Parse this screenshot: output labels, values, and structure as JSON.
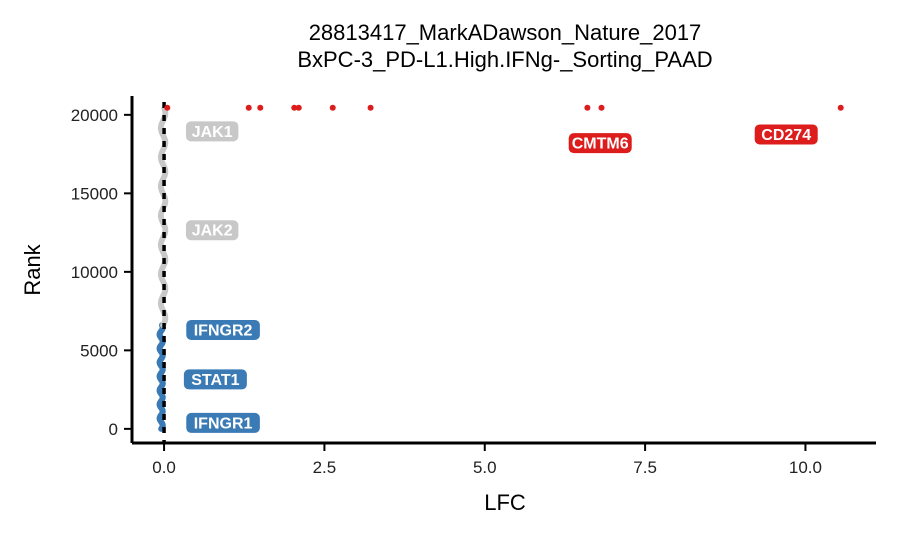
{
  "chart_data": {
    "type": "scatter",
    "title_line1": "28813417_MarkADawson_Nature_2017",
    "title_line2": "BxPC-3_PD-L1.High.IFNg-_Sorting_PAAD",
    "xlabel": "LFC",
    "ylabel": "Rank",
    "xlim": [
      -0.5,
      11.1
    ],
    "ylim": [
      -900,
      21200
    ],
    "x_ticks": [
      0.0,
      2.5,
      5.0,
      7.5,
      10.0
    ],
    "x_tick_labels": [
      "0.0",
      "2.5",
      "5.0",
      "7.5",
      "10.0"
    ],
    "y_ticks": [
      0,
      5000,
      10000,
      15000,
      20000
    ],
    "y_tick_labels": [
      "0",
      "5000",
      "10000",
      "15000",
      "20000"
    ],
    "grid": false,
    "reference_line_x": 0,
    "colors": {
      "negative": "#3a7ab5",
      "neutral": "#c8c8c8",
      "positive": "#dd1c1c",
      "reference_line": "#000000",
      "axis": "#000000"
    },
    "bulk_series": [
      {
        "group": "negative",
        "rank_range": [
          0,
          6600
        ],
        "lfc_range": [
          -0.07,
          -0.02
        ]
      },
      {
        "group": "neutral",
        "rank_range": [
          6600,
          20400
        ],
        "lfc_range": [
          -0.05,
          0.02
        ]
      }
    ],
    "points": [
      {
        "x": 0.05,
        "y": 20450,
        "group": "positive"
      },
      {
        "x": 1.32,
        "y": 20450,
        "group": "positive"
      },
      {
        "x": 1.5,
        "y": 20450,
        "group": "positive"
      },
      {
        "x": 2.03,
        "y": 20450,
        "group": "positive"
      },
      {
        "x": 2.1,
        "y": 20450,
        "group": "positive"
      },
      {
        "x": 2.63,
        "y": 20450,
        "group": "positive"
      },
      {
        "x": 3.22,
        "y": 20450,
        "group": "positive"
      },
      {
        "x": 6.6,
        "y": 20450,
        "group": "positive"
      },
      {
        "x": 6.82,
        "y": 20450,
        "group": "positive"
      },
      {
        "x": 10.55,
        "y": 20450,
        "group": "positive"
      }
    ],
    "gene_labels": [
      {
        "text": "JAK1",
        "x": 0.75,
        "y": 18950,
        "group": "neutral"
      },
      {
        "text": "JAK2",
        "x": 0.75,
        "y": 12650,
        "group": "neutral"
      },
      {
        "text": "IFNGR2",
        "x": 0.92,
        "y": 6300,
        "group": "negative"
      },
      {
        "text": "STAT1",
        "x": 0.8,
        "y": 3150,
        "group": "negative"
      },
      {
        "text": "IFNGR1",
        "x": 0.92,
        "y": 380,
        "group": "negative"
      },
      {
        "text": "CMTM6",
        "x": 6.8,
        "y": 18200,
        "group": "positive"
      },
      {
        "text": "CD274",
        "x": 9.7,
        "y": 18750,
        "group": "positive"
      }
    ]
  }
}
